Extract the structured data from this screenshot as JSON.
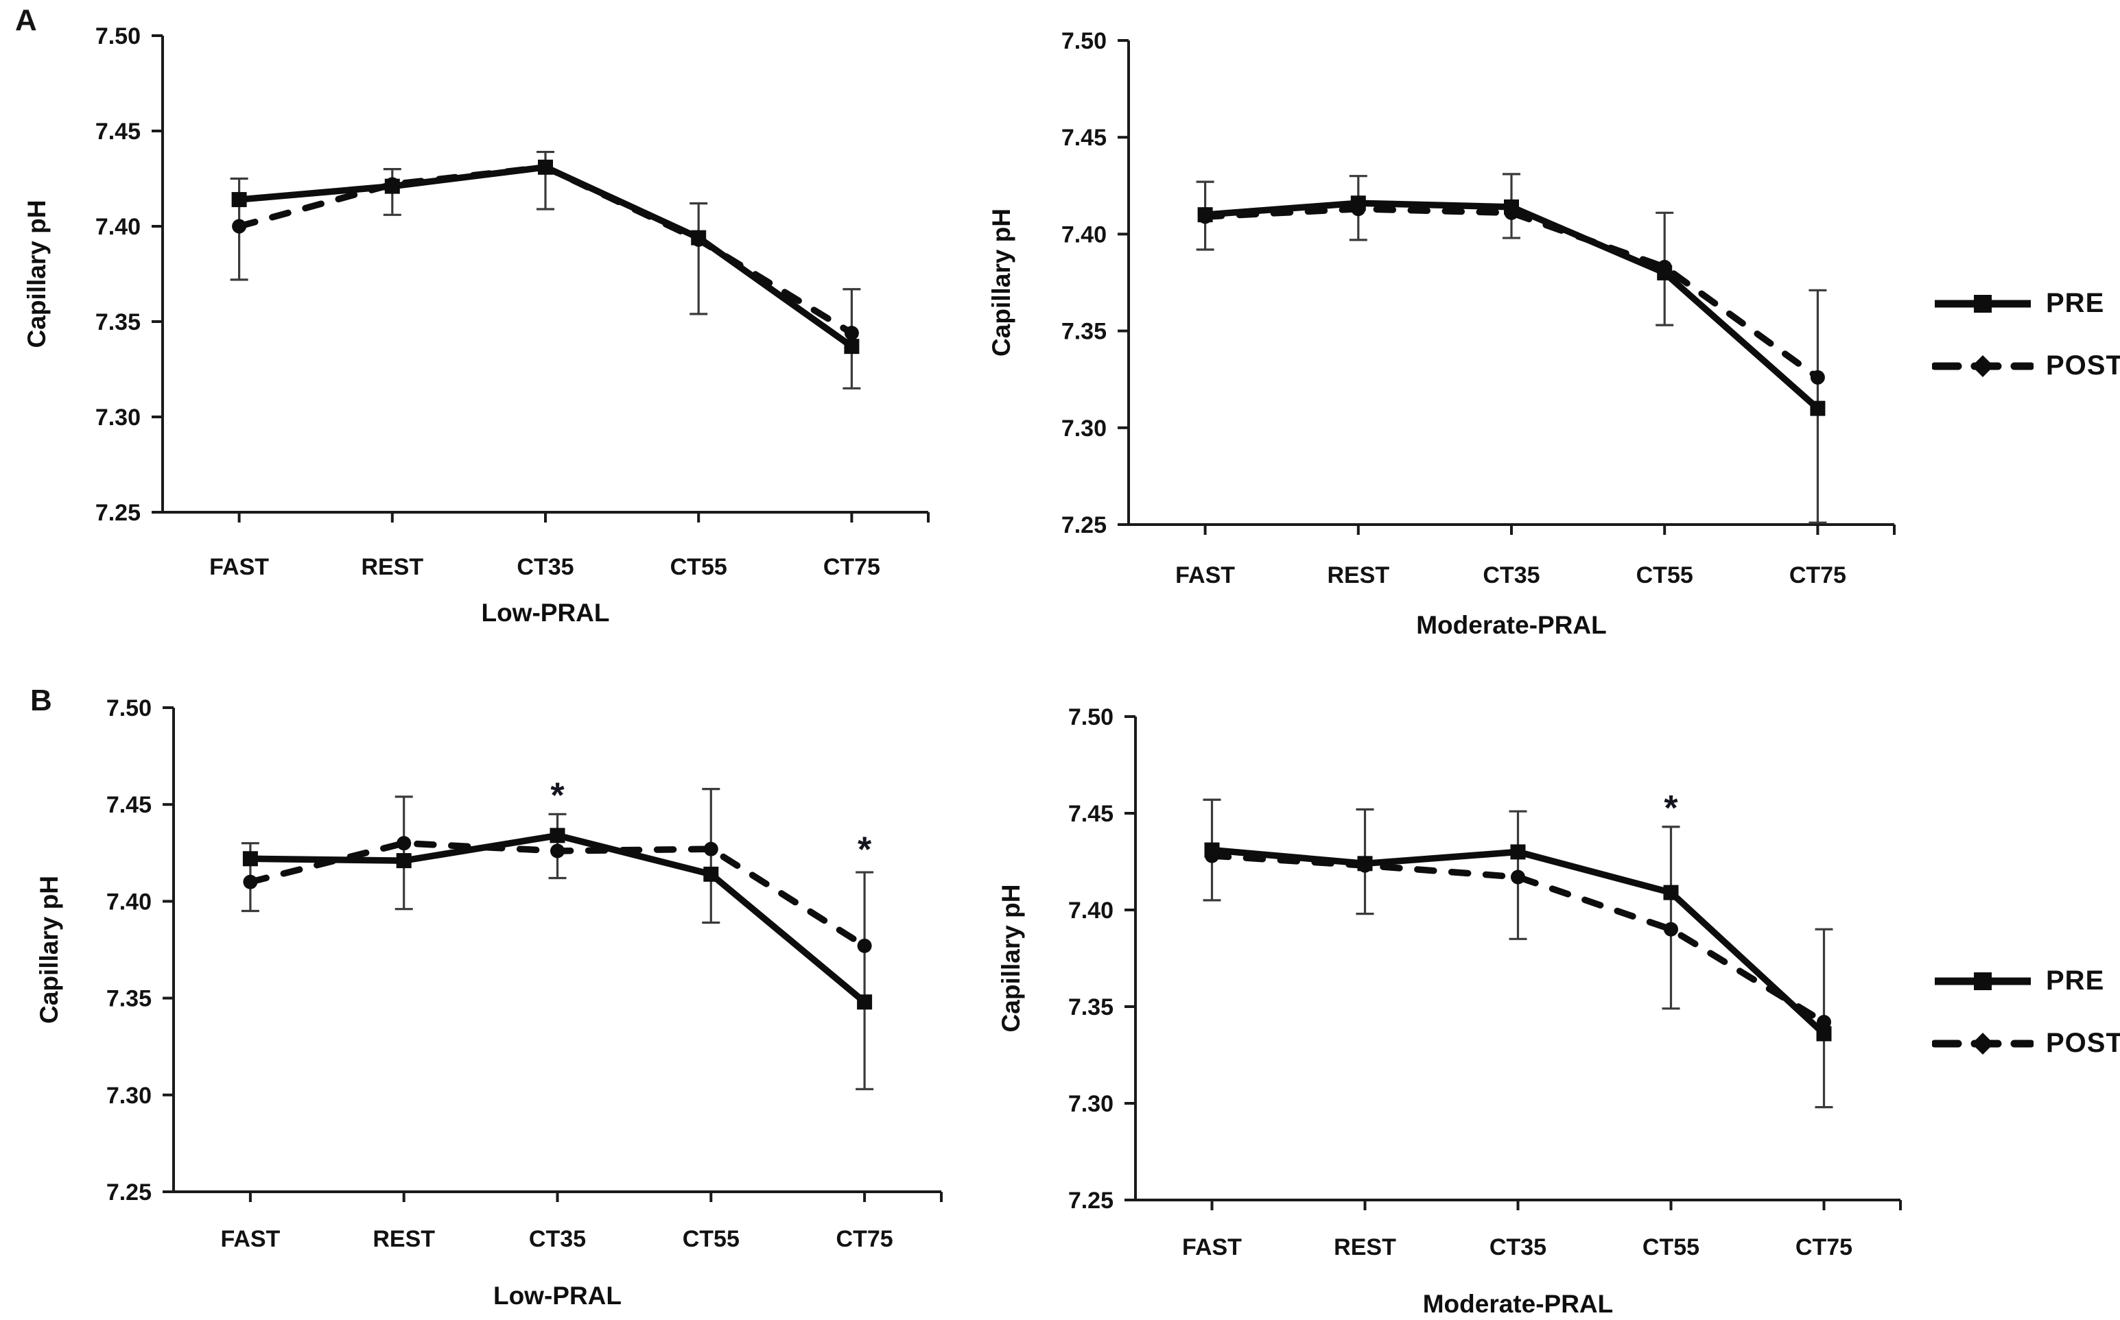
{
  "figure": {
    "panel_a_letter": "A",
    "panel_b_letter": "B"
  },
  "legend": {
    "entries": [
      {
        "label": "PRE",
        "line_style": "solid",
        "marker": "square"
      },
      {
        "label": "POST",
        "line_style": "dashed",
        "marker": "diamond"
      }
    ]
  },
  "colors": {
    "series": "#0d0d0d",
    "error_bars": "#3a3a3a",
    "axis": "#1a1a1a",
    "background": "#ffffff"
  },
  "chart_data": [
    {
      "type": "line",
      "panel": "A",
      "xlabel": "Low-PRAL",
      "ylabel": "Capillary pH",
      "categories": [
        "FAST",
        "REST",
        "CT35",
        "CT55",
        "CT75"
      ],
      "ylim": [
        7.25,
        7.5
      ],
      "yticks": [
        7.25,
        7.3,
        7.35,
        7.4,
        7.45,
        7.5
      ],
      "grid": false,
      "series": [
        {
          "name": "PRE",
          "style": "solid-square",
          "values": [
            7.414,
            7.421,
            7.431,
            7.394,
            7.337
          ]
        },
        {
          "name": "POST",
          "style": "dashed-diamond",
          "values": [
            7.4,
            7.422,
            7.431,
            7.393,
            7.344
          ]
        }
      ],
      "error_bar_low": [
        7.372,
        7.406,
        7.409,
        7.354,
        7.315
      ],
      "error_bar_high": [
        7.425,
        7.43,
        7.439,
        7.412,
        7.367
      ],
      "annotations": []
    },
    {
      "type": "line",
      "panel": "A",
      "xlabel": "Moderate-PRAL",
      "ylabel": "Capillary pH",
      "categories": [
        "FAST",
        "REST",
        "CT35",
        "CT55",
        "CT75"
      ],
      "ylim": [
        7.25,
        7.5
      ],
      "yticks": [
        7.25,
        7.3,
        7.35,
        7.4,
        7.45,
        7.5
      ],
      "grid": false,
      "series": [
        {
          "name": "PRE",
          "style": "solid-square",
          "values": [
            7.41,
            7.416,
            7.414,
            7.38,
            7.31
          ]
        },
        {
          "name": "POST",
          "style": "dashed-diamond",
          "values": [
            7.409,
            7.413,
            7.411,
            7.383,
            7.326
          ]
        }
      ],
      "error_bar_low": [
        7.392,
        7.397,
        7.398,
        7.353,
        7.251
      ],
      "error_bar_high": [
        7.427,
        7.43,
        7.431,
        7.411,
        7.371
      ],
      "annotations": []
    },
    {
      "type": "line",
      "panel": "B",
      "xlabel": "Low-PRAL",
      "ylabel": "Capillary pH",
      "categories": [
        "FAST",
        "REST",
        "CT35",
        "CT55",
        "CT75"
      ],
      "ylim": [
        7.25,
        7.5
      ],
      "yticks": [
        7.25,
        7.3,
        7.35,
        7.4,
        7.45,
        7.5
      ],
      "grid": false,
      "series": [
        {
          "name": "PRE",
          "style": "solid-square",
          "values": [
            7.422,
            7.421,
            7.434,
            7.414,
            7.348
          ]
        },
        {
          "name": "POST",
          "style": "dashed-diamond",
          "values": [
            7.41,
            7.43,
            7.426,
            7.427,
            7.377
          ]
        }
      ],
      "error_bar_low": [
        7.395,
        7.396,
        7.412,
        7.389,
        7.303
      ],
      "error_bar_high": [
        7.43,
        7.454,
        7.445,
        7.458,
        7.415
      ],
      "annotations": [
        {
          "category": "CT35",
          "text": "*",
          "y": 7.457
        },
        {
          "category": "CT75",
          "text": "*",
          "y": 7.429
        }
      ]
    },
    {
      "type": "line",
      "panel": "B",
      "xlabel": "Moderate-PRAL",
      "ylabel": "Capillary pH",
      "categories": [
        "FAST",
        "REST",
        "CT35",
        "CT55",
        "CT75"
      ],
      "ylim": [
        7.25,
        7.5
      ],
      "yticks": [
        7.25,
        7.3,
        7.35,
        7.4,
        7.45,
        7.5
      ],
      "grid": false,
      "series": [
        {
          "name": "PRE",
          "style": "solid-square",
          "values": [
            7.431,
            7.424,
            7.43,
            7.409,
            7.336
          ]
        },
        {
          "name": "POST",
          "style": "dashed-diamond",
          "values": [
            7.428,
            7.423,
            7.417,
            7.39,
            7.342
          ]
        }
      ],
      "error_bar_low": [
        7.405,
        7.398,
        7.385,
        7.349,
        7.298
      ],
      "error_bar_high": [
        7.457,
        7.452,
        7.451,
        7.443,
        7.39
      ],
      "annotations": [
        {
          "category": "CT55",
          "text": "*",
          "y": 7.455
        }
      ]
    }
  ]
}
